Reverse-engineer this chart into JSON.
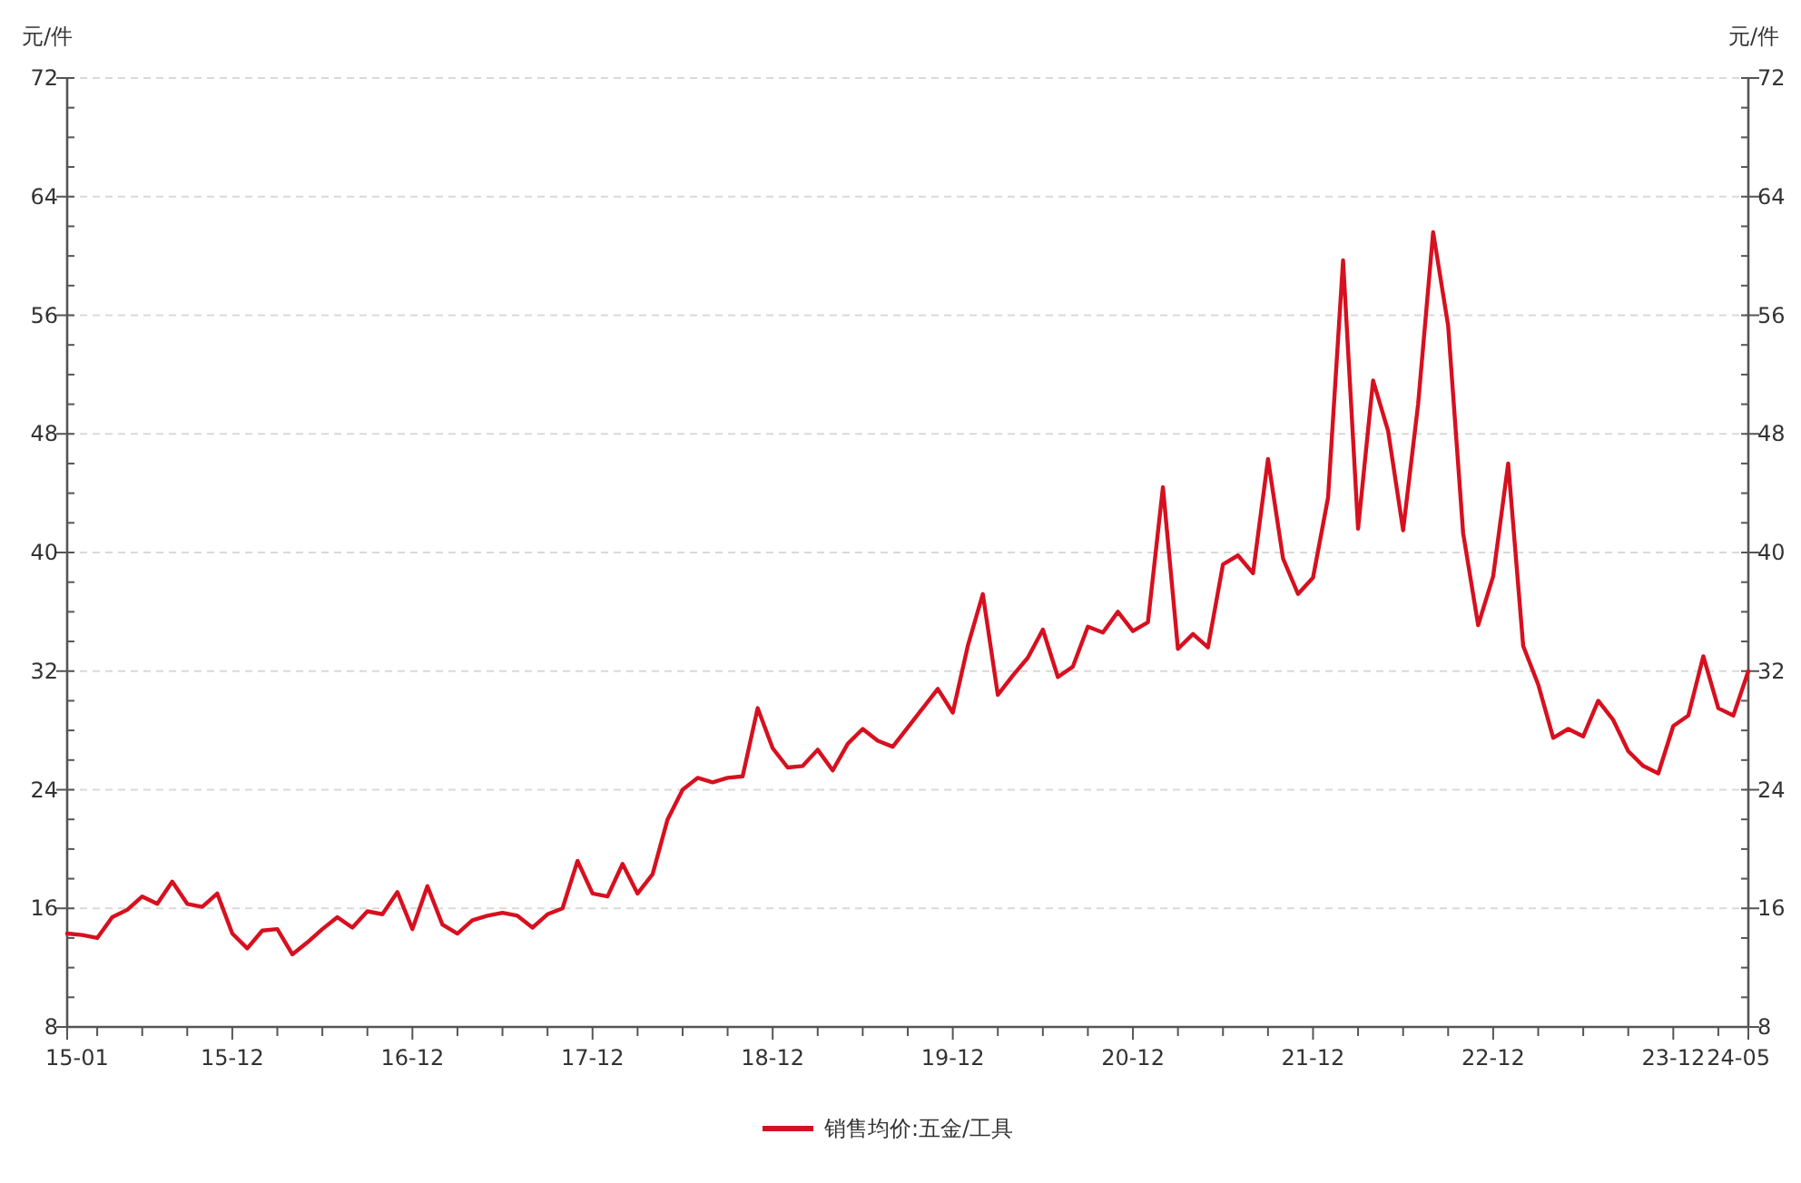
{
  "chart_data": {
    "type": "line",
    "ylabel": "元/件",
    "y2label": "元/件",
    "categories": [
      "15-01",
      null,
      null,
      null,
      null,
      null,
      null,
      null,
      null,
      null,
      null,
      "15-12",
      null,
      null,
      null,
      null,
      null,
      null,
      null,
      null,
      null,
      null,
      null,
      "16-12",
      null,
      null,
      null,
      null,
      null,
      null,
      null,
      null,
      null,
      null,
      null,
      "17-12",
      null,
      null,
      null,
      null,
      null,
      null,
      null,
      null,
      null,
      null,
      null,
      "18-12",
      null,
      null,
      null,
      null,
      null,
      null,
      null,
      null,
      null,
      null,
      null,
      "19-12",
      null,
      null,
      null,
      null,
      null,
      null,
      null,
      null,
      null,
      null,
      null,
      "20-12",
      null,
      null,
      null,
      null,
      null,
      null,
      null,
      null,
      null,
      null,
      null,
      "21-12",
      null,
      null,
      null,
      null,
      null,
      null,
      null,
      null,
      null,
      null,
      null,
      "22-12",
      null,
      null,
      null,
      null,
      null,
      null,
      null,
      null,
      null,
      null,
      null,
      "23-12",
      null,
      null,
      null,
      null,
      "24-05"
    ],
    "series": [
      {
        "name": "销售均价:五金/工具",
        "color": "#d7101f",
        "values": [
          14.3,
          14.2,
          14.0,
          15.4,
          15.9,
          16.8,
          16.3,
          17.8,
          16.3,
          16.1,
          17.0,
          14.3,
          13.3,
          14.5,
          14.6,
          12.9,
          13.7,
          14.6,
          15.4,
          14.7,
          15.8,
          15.6,
          17.1,
          14.6,
          17.5,
          14.9,
          14.3,
          15.2,
          15.5,
          15.7,
          15.5,
          14.7,
          15.6,
          16.0,
          19.2,
          17.0,
          16.8,
          19.0,
          17.0,
          18.3,
          22.0,
          24.0,
          24.8,
          24.5,
          24.8,
          24.9,
          29.5,
          26.8,
          25.5,
          25.6,
          26.7,
          25.3,
          27.1,
          28.1,
          27.3,
          26.9,
          28.2,
          29.5,
          30.8,
          29.2,
          33.7,
          37.2,
          30.4,
          31.7,
          32.9,
          34.8,
          31.6,
          32.3,
          35.0,
          34.6,
          36.0,
          34.7,
          35.3,
          44.4,
          33.5,
          34.5,
          33.6,
          39.2,
          39.8,
          38.6,
          46.3,
          39.6,
          37.2,
          38.3,
          43.7,
          59.7,
          41.6,
          51.6,
          48.2,
          41.5,
          50.0,
          61.6,
          55.3,
          41.3,
          35.1,
          38.4,
          46.0,
          33.7,
          31.1,
          27.5,
          28.1,
          27.6,
          30.0,
          28.7,
          26.6,
          25.6,
          25.1,
          28.3,
          29.0,
          33.0,
          29.5,
          29.0,
          32.0
        ]
      }
    ],
    "ylim": [
      8,
      72
    ],
    "yticks": [
      8,
      16,
      24,
      32,
      40,
      48,
      56,
      64,
      72
    ],
    "y2lim": [
      8,
      72
    ],
    "y2ticks": [
      8,
      16,
      24,
      32,
      40,
      48,
      56,
      64,
      72
    ],
    "grid": "y",
    "legend": "bottom"
  }
}
